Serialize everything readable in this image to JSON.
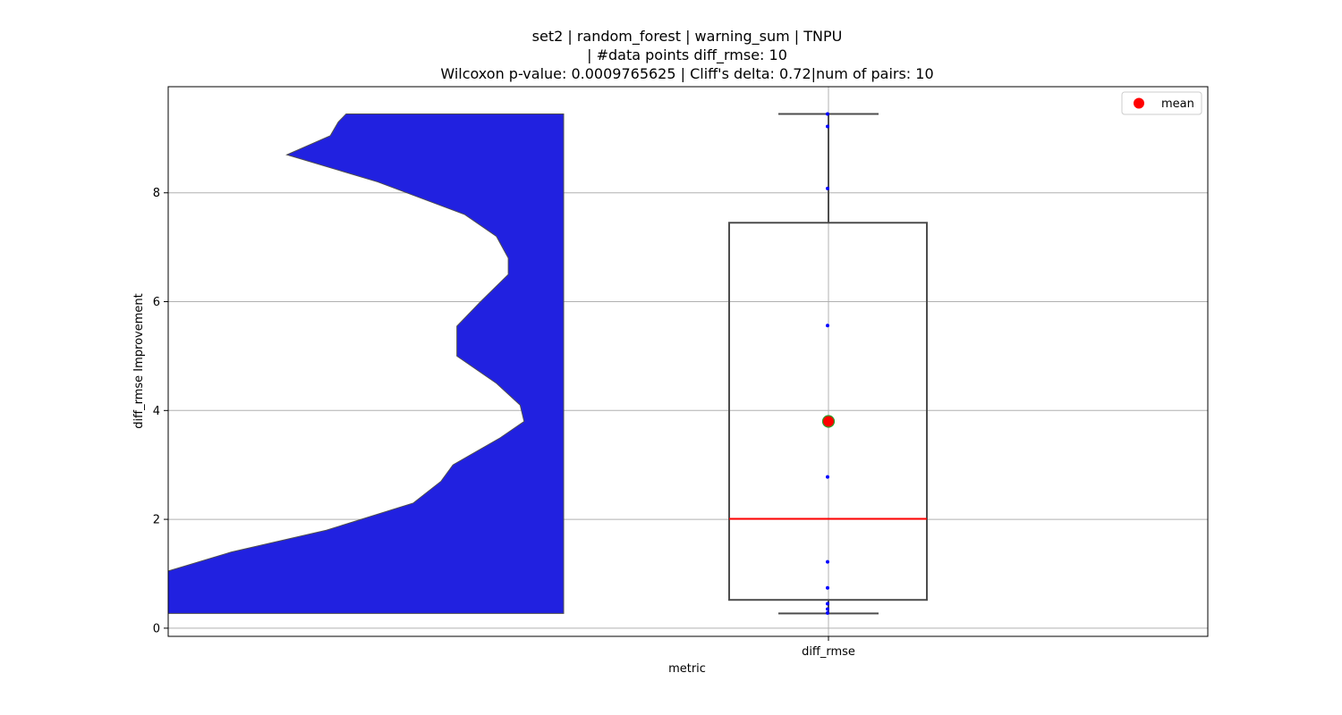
{
  "chart_data": {
    "type": "violin-box",
    "title_lines": [
      "set2 | random_forest | warning_sum | TNPU",
      "| #data points diff_rmse: 10",
      "Wilcoxon p-value: 0.0009765625 | Cliff's delta: 0.72|num of pairs: 10"
    ],
    "xlabel": "metric",
    "ylabel": "diff_rmse Improvement",
    "categories": [
      "diff_rmse"
    ],
    "ylim": [
      -0.15,
      9.95
    ],
    "yticks": [
      0,
      2,
      4,
      6,
      8
    ],
    "grid": true,
    "points": [
      0.28,
      0.35,
      0.45,
      0.74,
      1.22,
      2.78,
      5.56,
      8.08,
      9.22,
      9.45
    ],
    "box": {
      "q1": 0.52,
      "median": 2.01,
      "q3": 7.45,
      "whisker_low": 0.27,
      "whisker_high": 9.45
    },
    "mean": 3.8,
    "violin_half_widths": [
      [
        0.27,
        1.0
      ],
      [
        0.6,
        1.0
      ],
      [
        1.05,
        1.0
      ],
      [
        1.4,
        0.84
      ],
      [
        1.8,
        0.6
      ],
      [
        2.3,
        0.38
      ],
      [
        2.7,
        0.31
      ],
      [
        3.0,
        0.28
      ],
      [
        3.5,
        0.16
      ],
      [
        3.8,
        0.1
      ],
      [
        4.1,
        0.11
      ],
      [
        4.5,
        0.17
      ],
      [
        5.0,
        0.27
      ],
      [
        5.55,
        0.27
      ],
      [
        6.0,
        0.21
      ],
      [
        6.5,
        0.14
      ],
      [
        6.8,
        0.14
      ],
      [
        7.2,
        0.17
      ],
      [
        7.6,
        0.25
      ],
      [
        8.2,
        0.47
      ],
      [
        8.7,
        0.7
      ],
      [
        9.05,
        0.59
      ],
      [
        9.3,
        0.57
      ],
      [
        9.45,
        0.55
      ]
    ],
    "legend": {
      "entries": [
        {
          "label": "mean",
          "color": "#ff0000"
        }
      ],
      "position": "top-right"
    },
    "colors": {
      "violin": "#2121e0",
      "median": "#ff0000",
      "mean": "#ff0000",
      "mean_edge": "#2ca02c",
      "points": "#0000ff",
      "box_edge": "#4d4d4d"
    }
  }
}
